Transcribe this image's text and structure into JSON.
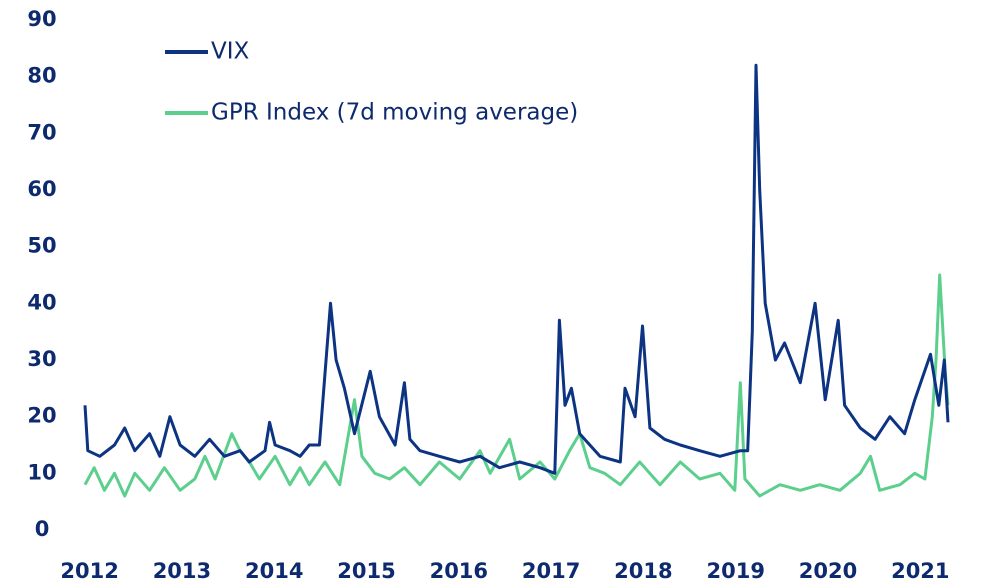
{
  "chart_data": {
    "type": "line",
    "xlim": [
      2011.95,
      2021.3
    ],
    "xticks": [
      2012,
      2013,
      2014,
      2015,
      2016,
      2017,
      2018,
      2019,
      2020,
      2021
    ],
    "ylim": [
      0,
      90
    ],
    "yticks": [
      0,
      10,
      20,
      30,
      40,
      50,
      60,
      70,
      80,
      90
    ],
    "grid": false,
    "legend": "top-left",
    "series": [
      {
        "name": "GPR Index (7d moving average)",
        "color": "#5ccf8d",
        "x": [
          2011.95,
          2012.05,
          2012.16,
          2012.27,
          2012.38,
          2012.49,
          2012.65,
          2012.81,
          2012.98,
          2013.14,
          2013.25,
          2013.36,
          2013.54,
          2013.63,
          2013.73,
          2013.84,
          2014.01,
          2014.17,
          2014.28,
          2014.38,
          2014.55,
          2014.71,
          2014.87,
          2014.95,
          2015.09,
          2015.25,
          2015.41,
          2015.58,
          2015.79,
          2016.01,
          2016.23,
          2016.34,
          2016.55,
          2016.66,
          2016.88,
          2017.04,
          2017.2,
          2017.31,
          2017.42,
          2017.58,
          2017.75,
          2017.96,
          2018.18,
          2018.4,
          2018.61,
          2018.83,
          2018.99,
          2019.05,
          2019.1,
          2019.26,
          2019.48,
          2019.7,
          2019.91,
          2020.13,
          2020.35,
          2020.46,
          2020.56,
          2020.78,
          2020.94,
          2021.05,
          2021.13,
          2021.17,
          2021.21,
          2021.27,
          2021.3
        ],
        "values": [
          8,
          11,
          7,
          10,
          6,
          10,
          7,
          11,
          7,
          9,
          13,
          9,
          17,
          14,
          12,
          9,
          13,
          8,
          11,
          8,
          12,
          8,
          23,
          13,
          10,
          9,
          11,
          8,
          12,
          9,
          14,
          10,
          16,
          9,
          12,
          9,
          14,
          17,
          11,
          10,
          8,
          12,
          8,
          12,
          9,
          10,
          7,
          26,
          9,
          6,
          8,
          7,
          8,
          7,
          10,
          13,
          7,
          8,
          10,
          9,
          20,
          30,
          45,
          28,
          22
        ]
      },
      {
        "name": "VIX",
        "color": "#0d3383",
        "x": [
          2011.95,
          2011.98,
          2012.11,
          2012.27,
          2012.38,
          2012.49,
          2012.65,
          2012.76,
          2012.87,
          2012.98,
          2013.14,
          2013.3,
          2013.46,
          2013.63,
          2013.73,
          2013.9,
          2013.95,
          2014.01,
          2014.17,
          2014.28,
          2014.38,
          2014.49,
          2014.61,
          2014.67,
          2014.76,
          2014.87,
          2015.04,
          2015.14,
          2015.31,
          2015.41,
          2015.47,
          2015.58,
          2015.79,
          2016.01,
          2016.23,
          2016.44,
          2016.66,
          2016.88,
          2017.04,
          2017.09,
          2017.15,
          2017.22,
          2017.31,
          2017.53,
          2017.75,
          2017.8,
          2017.91,
          2017.99,
          2018.07,
          2018.23,
          2018.4,
          2018.61,
          2018.83,
          2019.05,
          2019.13,
          2019.18,
          2019.22,
          2019.26,
          2019.32,
          2019.43,
          2019.53,
          2019.7,
          2019.86,
          2019.97,
          2020.11,
          2020.18,
          2020.35,
          2020.51,
          2020.67,
          2020.83,
          2020.94,
          2021.11,
          2021.2,
          2021.26,
          2021.3
        ],
        "values": [
          22,
          14,
          13,
          15,
          18,
          14,
          17,
          13,
          20,
          15,
          13,
          16,
          13,
          14,
          12,
          14,
          19,
          15,
          14,
          13,
          15,
          15,
          40,
          30,
          25,
          17,
          28,
          20,
          15,
          26,
          16,
          14,
          13,
          12,
          13,
          11,
          12,
          11,
          10,
          37,
          22,
          25,
          17,
          13,
          12,
          25,
          20,
          36,
          18,
          16,
          15,
          14,
          13,
          14,
          14,
          35,
          82,
          60,
          40,
          30,
          33,
          26,
          40,
          23,
          37,
          22,
          18,
          16,
          20,
          17,
          23,
          31,
          22,
          30,
          19
        ]
      }
    ]
  }
}
